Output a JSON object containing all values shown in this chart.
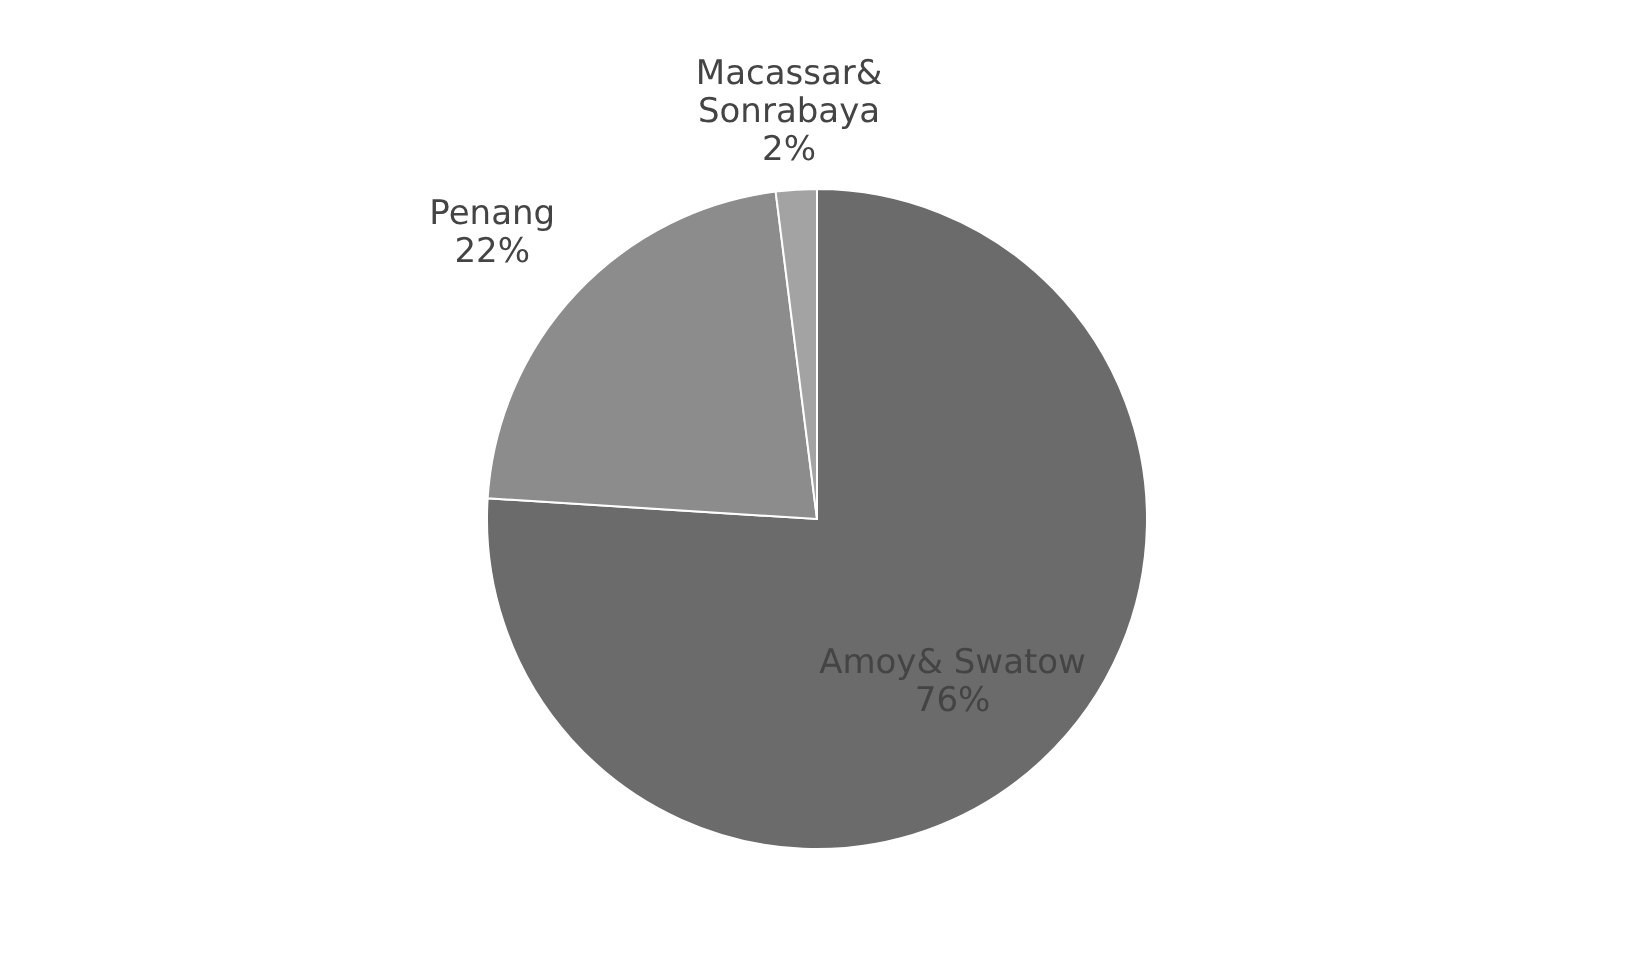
{
  "chart_data": {
    "type": "pie",
    "categories": [
      "Amoy& Swatow",
      "Penang",
      "Macassar& Sonrabaya"
    ],
    "values": [
      76,
      22,
      2
    ],
    "value_labels": [
      "76%",
      "22%",
      "2%"
    ],
    "colors": [
      "#6b6b6b",
      "#8c8c8c",
      "#a3a3a3"
    ],
    "legend": false
  }
}
